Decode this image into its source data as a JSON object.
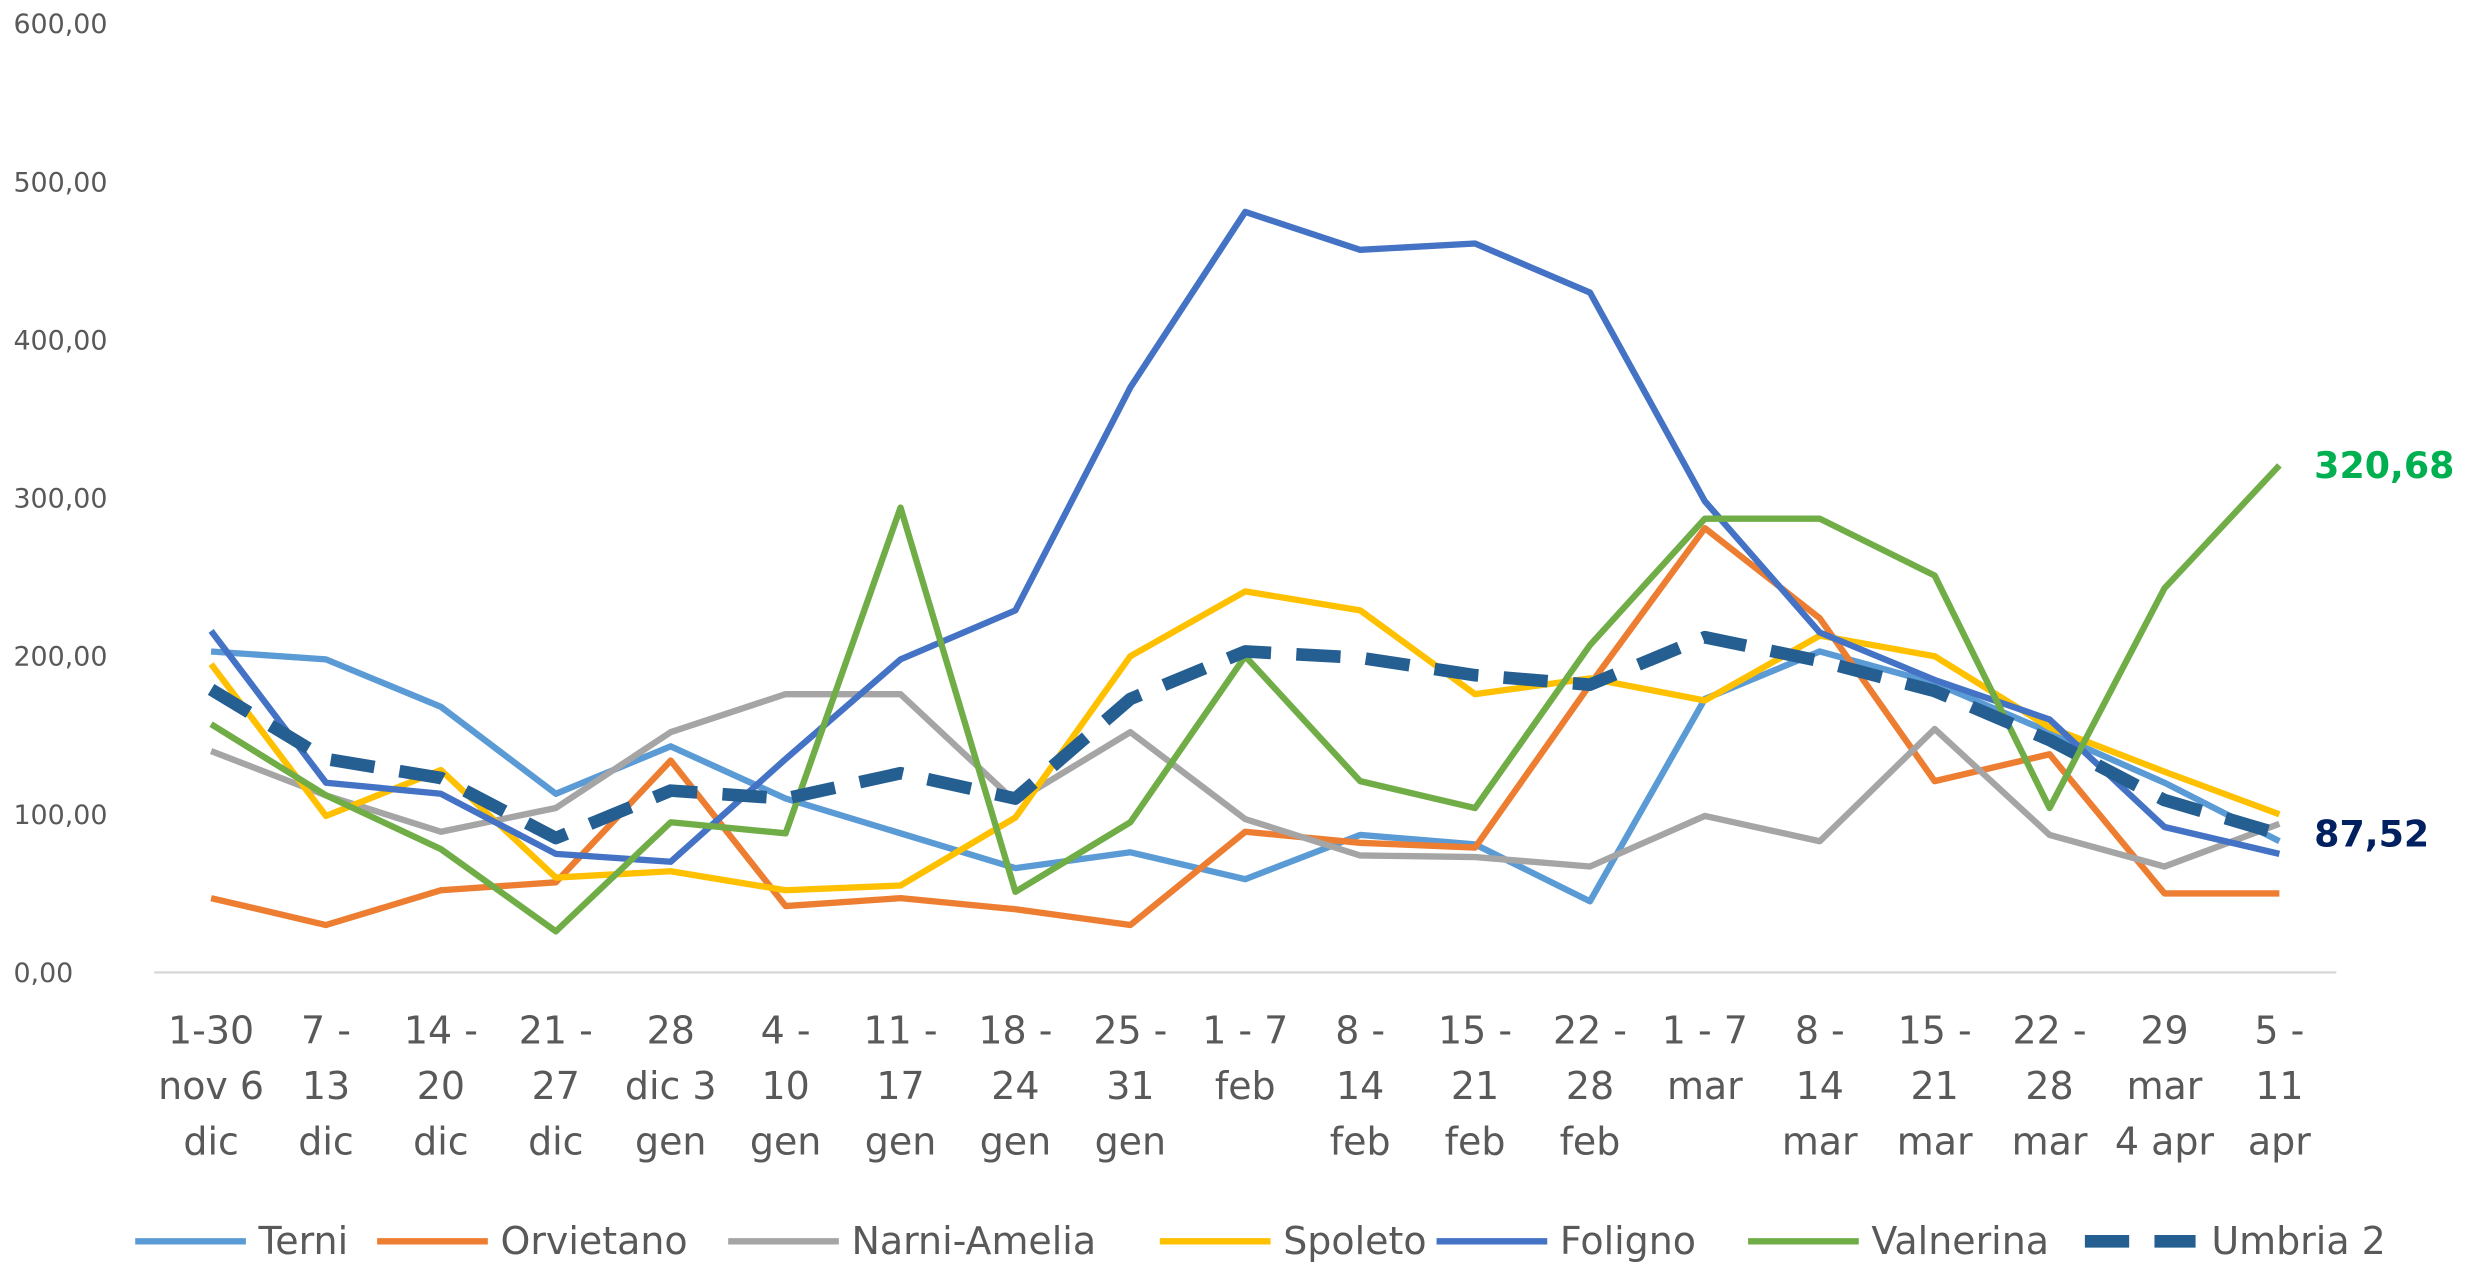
{
  "chart_data": {
    "type": "line",
    "categories": [
      [
        "1-30",
        "nov 6",
        "dic"
      ],
      [
        "7 -",
        "13",
        "dic"
      ],
      [
        "14 -",
        "20",
        "dic"
      ],
      [
        "21 -",
        "27",
        "dic"
      ],
      [
        "28",
        "dic 3",
        "gen"
      ],
      [
        "4 -",
        "10",
        "gen"
      ],
      [
        "11 -",
        "17",
        "gen"
      ],
      [
        "18 -",
        "24",
        "gen"
      ],
      [
        "25 -",
        "31",
        "gen"
      ],
      [
        "1 - 7",
        "feb"
      ],
      [
        "8 -",
        "14",
        "feb"
      ],
      [
        "15 -",
        "21",
        "feb"
      ],
      [
        "22 -",
        "28",
        "feb"
      ],
      [
        "1 - 7",
        "mar"
      ],
      [
        "8 -",
        "14",
        "mar"
      ],
      [
        "15 -",
        "21",
        "mar"
      ],
      [
        "22 -",
        "28",
        "mar"
      ],
      [
        "29",
        "mar",
        "4 apr"
      ],
      [
        "5 -",
        "11",
        "apr"
      ]
    ],
    "ylim": [
      0,
      600
    ],
    "yticks": [
      {
        "value": 0,
        "label": "0,00"
      },
      {
        "value": 100,
        "label": "100,00"
      },
      {
        "value": 200,
        "label": "200,00"
      },
      {
        "value": 300,
        "label": "300,00"
      },
      {
        "value": 400,
        "label": "400,00"
      },
      {
        "value": 500,
        "label": "500,00"
      },
      {
        "value": 600,
        "label": "600,00"
      }
    ],
    "grid": false,
    "legend": "bottom",
    "series": [
      {
        "name": "Terni",
        "color": "#5B9BD5",
        "values": [
          203,
          198,
          168,
          113,
          143,
          110,
          88,
          66,
          76,
          59,
          87,
          81,
          45,
          173,
          203,
          183,
          152,
          120,
          83
        ]
      },
      {
        "name": "Orvietano",
        "color": "#ED7D31",
        "values": [
          47,
          30,
          52,
          57,
          134,
          42,
          47,
          40,
          30,
          89,
          82,
          79,
          182,
          281,
          224,
          121,
          138,
          50,
          50
        ]
      },
      {
        "name": "Narni-Amelia",
        "color": "#A5A5A5",
        "values": [
          140,
          112,
          89,
          104,
          152,
          176,
          176,
          108,
          152,
          97,
          74,
          73,
          67,
          99,
          83,
          154,
          87,
          67,
          94
        ]
      },
      {
        "name": "Spoleto",
        "color": "#FFC000",
        "values": [
          195,
          99,
          128,
          60,
          64,
          52,
          55,
          98,
          200,
          241,
          229,
          176,
          186,
          172,
          213,
          200,
          155,
          127,
          100
        ]
      },
      {
        "name": "Foligno",
        "color": "#4472C4",
        "values": [
          216,
          120,
          113,
          75,
          70,
          135,
          198,
          229,
          370,
          481,
          457,
          461,
          430,
          298,
          215,
          185,
          160,
          92,
          75
        ]
      },
      {
        "name": "Valnerina",
        "color": "#70AD47",
        "values": [
          157,
          112,
          78,
          26,
          95,
          88,
          294,
          51,
          95,
          200,
          121,
          104,
          207,
          287,
          287,
          251,
          104,
          243,
          320.68
        ],
        "value_labels": [
          null,
          null,
          null,
          null,
          null,
          null,
          null,
          null,
          null,
          null,
          null,
          null,
          null,
          null,
          null,
          null,
          null,
          null,
          "320,68"
        ],
        "label_color": "#00B050"
      },
      {
        "name": "Umbria 2",
        "color": "#255E91",
        "dashed": true,
        "values": [
          179,
          135,
          123,
          85,
          115,
          110,
          126,
          110,
          173,
          203,
          199,
          188,
          182,
          212,
          197,
          178,
          147,
          109,
          87.52
        ],
        "value_labels": [
          null,
          null,
          null,
          null,
          null,
          null,
          null,
          null,
          null,
          null,
          null,
          null,
          null,
          null,
          null,
          null,
          null,
          null,
          "87,52"
        ],
        "label_color": "#002060"
      }
    ]
  }
}
